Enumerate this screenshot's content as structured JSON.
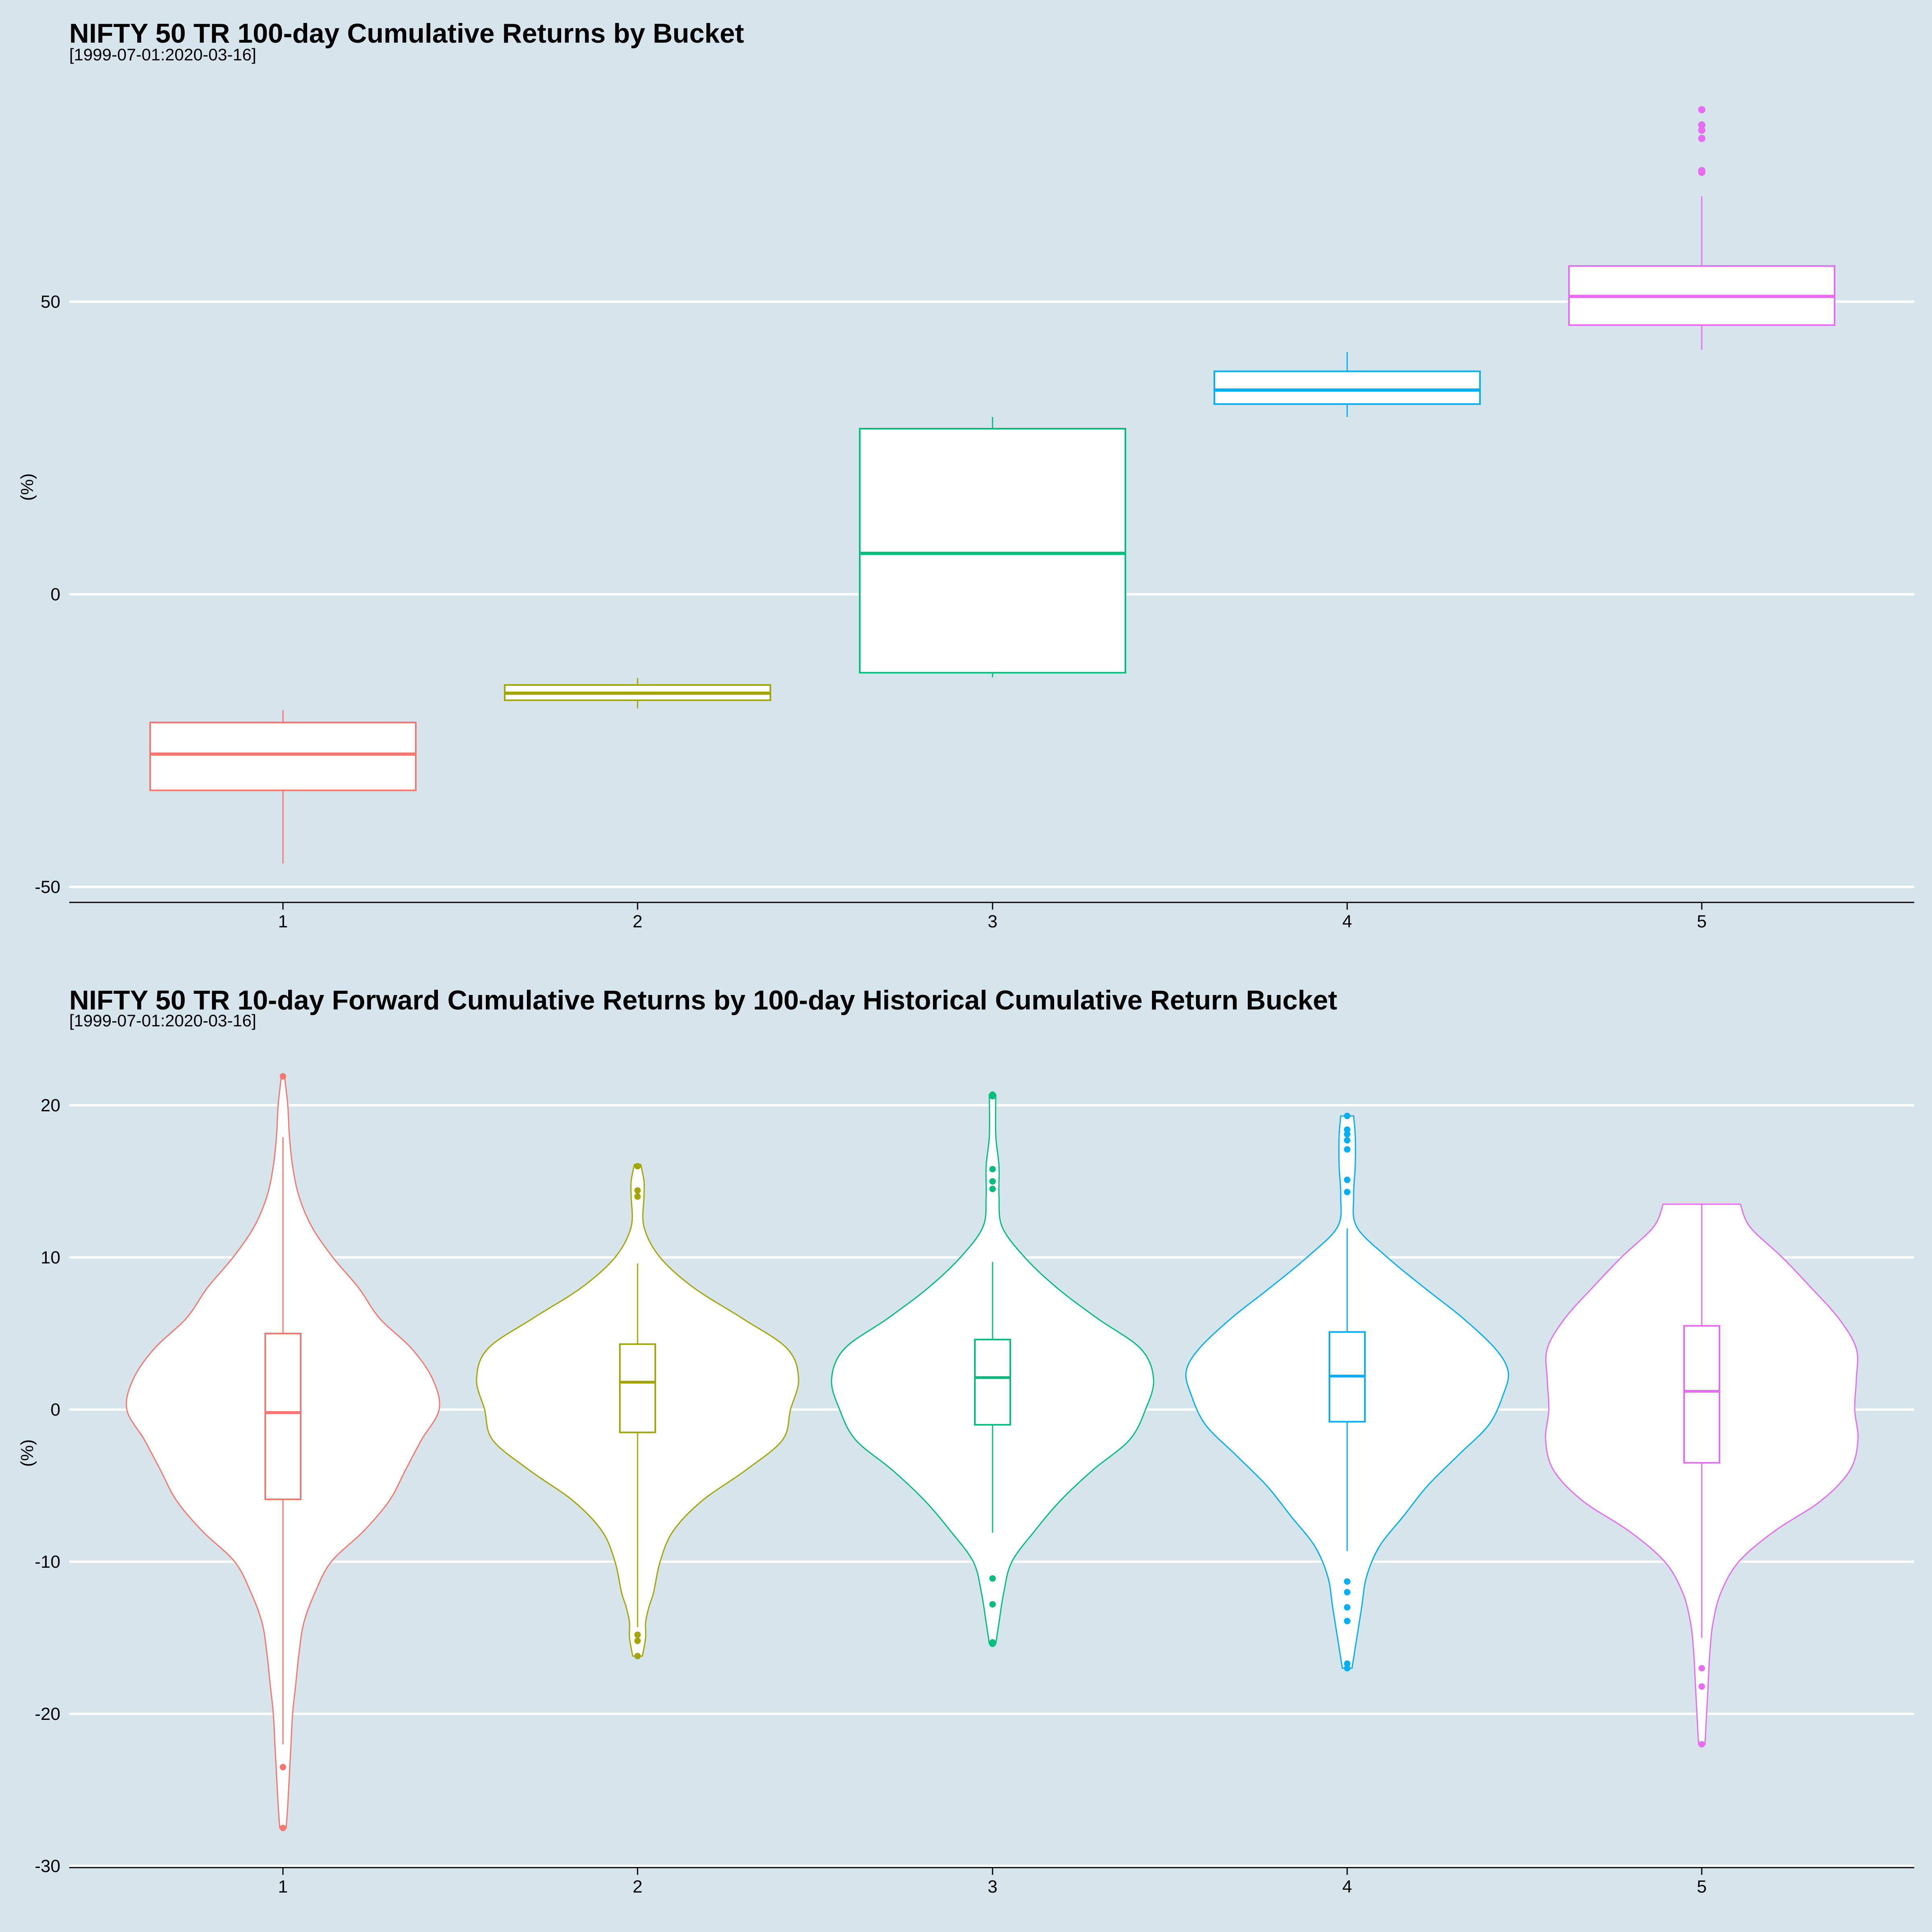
{
  "chart_data": [
    {
      "type": "box",
      "title": "NIFTY 50 TR 100-day Cumulative Returns by Bucket",
      "subtitle": "[1999-07-01:2020-03-16]",
      "ylabel": "(%)",
      "ylim": [
        -52,
        100
      ],
      "yticks": [
        -50,
        0,
        50
      ],
      "grid": true,
      "categories": [
        "1",
        "2",
        "3",
        "4",
        "5"
      ],
      "colors": [
        "#F8766D",
        "#A3A500",
        "#00BF7D",
        "#00B0F6",
        "#E76BF3"
      ],
      "boxes": [
        {
          "category": "1",
          "whisker_low": -46,
          "q1": -33.5,
          "median": -27.3,
          "q3": -21.9,
          "whisker_high": -19.8,
          "outliers": []
        },
        {
          "category": "2",
          "whisker_low": -19.5,
          "q1": -18.1,
          "median": -16.9,
          "q3": -15.5,
          "whisker_high": -14.3,
          "outliers": []
        },
        {
          "category": "3",
          "whisker_low": -14.2,
          "q1": -13.4,
          "median": 7.0,
          "q3": 28.3,
          "whisker_high": 30.3,
          "outliers": []
        },
        {
          "category": "4",
          "whisker_low": 30.3,
          "q1": 32.5,
          "median": 34.9,
          "q3": 38.1,
          "whisker_high": 41.4,
          "outliers": []
        },
        {
          "category": "5",
          "whisker_low": 41.8,
          "q1": 46.0,
          "median": 50.9,
          "q3": 56.1,
          "whisker_high": 68.0,
          "outliers": [
            72.1,
            72.4,
            77.9,
            79.3,
            80.2,
            82.8
          ]
        }
      ]
    },
    {
      "type": "violin",
      "title": "NIFTY 50 TR 10-day Forward Cumulative Returns by 100-day Historical Cumulative Return Bucket",
      "subtitle": "[1999-07-01:2020-03-16]",
      "ylabel": "(%)",
      "ylim": [
        -30,
        24
      ],
      "yticks": [
        -30,
        -20,
        -10,
        0,
        10,
        20
      ],
      "grid": true,
      "categories": [
        "1",
        "2",
        "3",
        "4",
        "5"
      ],
      "colors": [
        "#F8766D",
        "#A3A500",
        "#00BF7D",
        "#00B0F6",
        "#E76BF3"
      ],
      "violins": [
        {
          "category": "1",
          "range": [
            -27.5,
            21.9
          ],
          "density": [
            [
              -27.5,
              0.02
            ],
            [
              -26,
              0.03
            ],
            [
              -24,
              0.04
            ],
            [
              -22,
              0.05
            ],
            [
              -20,
              0.06
            ],
            [
              -18,
              0.08
            ],
            [
              -16,
              0.1
            ],
            [
              -14,
              0.13
            ],
            [
              -12,
              0.2
            ],
            [
              -10,
              0.3
            ],
            [
              -8,
              0.5
            ],
            [
              -6,
              0.66
            ],
            [
              -4,
              0.76
            ],
            [
              -2,
              0.86
            ],
            [
              0,
              0.97
            ],
            [
              2,
              0.93
            ],
            [
              4,
              0.8
            ],
            [
              6,
              0.6
            ],
            [
              8,
              0.47
            ],
            [
              10,
              0.31
            ],
            [
              12,
              0.18
            ],
            [
              14,
              0.1
            ],
            [
              16,
              0.06
            ],
            [
              18,
              0.04
            ],
            [
              20,
              0.03
            ],
            [
              21.9,
              0.01
            ]
          ],
          "box": {
            "whisker_low": -22.0,
            "q1": -5.9,
            "median": -0.2,
            "q3": 5.0,
            "whisker_high": 17.9
          },
          "outliers": [
            -27.5,
            -23.5,
            21.9
          ]
        },
        {
          "category": "2",
          "range": [
            -16.2,
            16.1
          ],
          "density": [
            [
              -16.2,
              0.03
            ],
            [
              -15,
              0.05
            ],
            [
              -14,
              0.05
            ],
            [
              -13,
              0.07
            ],
            [
              -12,
              0.1
            ],
            [
              -10,
              0.14
            ],
            [
              -8,
              0.22
            ],
            [
              -6,
              0.4
            ],
            [
              -4,
              0.67
            ],
            [
              -2,
              0.9
            ],
            [
              0,
              0.95
            ],
            [
              2,
              1.0
            ],
            [
              4,
              0.93
            ],
            [
              6,
              0.65
            ],
            [
              8,
              0.35
            ],
            [
              10,
              0.14
            ],
            [
              12,
              0.04
            ],
            [
              14,
              0.04
            ],
            [
              15,
              0.04
            ],
            [
              16.1,
              0.02
            ]
          ],
          "box": {
            "whisker_low": -14.3,
            "q1": -1.5,
            "median": 1.8,
            "q3": 4.3,
            "whisker_high": 9.6
          },
          "outliers": [
            -16.2,
            -15.2,
            -14.8,
            14.0,
            14.4,
            16.0
          ]
        },
        {
          "category": "3",
          "range": [
            -15.4,
            20.7
          ],
          "density": [
            [
              -15.4,
              0.02
            ],
            [
              -14,
              0.04
            ],
            [
              -12,
              0.07
            ],
            [
              -10,
              0.12
            ],
            [
              -8,
              0.26
            ],
            [
              -6,
              0.42
            ],
            [
              -4,
              0.62
            ],
            [
              -2,
              0.85
            ],
            [
              0,
              0.95
            ],
            [
              2,
              1.0
            ],
            [
              4,
              0.92
            ],
            [
              6,
              0.65
            ],
            [
              8,
              0.4
            ],
            [
              10,
              0.2
            ],
            [
              12,
              0.06
            ],
            [
              14,
              0.04
            ],
            [
              16,
              0.04
            ],
            [
              18,
              0.02
            ],
            [
              20.7,
              0.02
            ]
          ],
          "box": {
            "whisker_low": -8.1,
            "q1": -1.0,
            "median": 2.1,
            "q3": 4.6,
            "whisker_high": 9.7
          },
          "outliers": [
            -15.4,
            -15.3,
            -12.8,
            -11.1,
            14.5,
            15.0,
            15.8,
            20.6,
            20.7
          ]
        },
        {
          "category": "4",
          "range": [
            -17.0,
            19.3
          ],
          "density": [
            [
              -17,
              0.03
            ],
            [
              -15,
              0.06
            ],
            [
              -13,
              0.09
            ],
            [
              -11,
              0.12
            ],
            [
              -9,
              0.2
            ],
            [
              -7,
              0.35
            ],
            [
              -5,
              0.5
            ],
            [
              -3,
              0.69
            ],
            [
              -1,
              0.88
            ],
            [
              1,
              0.97
            ],
            [
              2.5,
              1.0
            ],
            [
              4,
              0.92
            ],
            [
              6,
              0.72
            ],
            [
              8,
              0.48
            ],
            [
              10,
              0.25
            ],
            [
              12,
              0.06
            ],
            [
              14,
              0.04
            ],
            [
              16,
              0.05
            ],
            [
              18,
              0.05
            ],
            [
              19.3,
              0.04
            ]
          ],
          "box": {
            "whisker_low": -9.3,
            "q1": -0.8,
            "median": 2.2,
            "q3": 5.1,
            "whisker_high": 11.9
          },
          "outliers": [
            -17.0,
            -16.7,
            -13.9,
            -13.0,
            -12.0,
            -11.3,
            14.3,
            15.1,
            17.1,
            17.7,
            18.1,
            18.4,
            19.3
          ]
        },
        {
          "category": "5",
          "range": [
            -22.0,
            13.5
          ],
          "density": [
            [
              -22,
              0.02
            ],
            [
              -20,
              0.03
            ],
            [
              -18,
              0.04
            ],
            [
              -16,
              0.05
            ],
            [
              -14,
              0.07
            ],
            [
              -12,
              0.12
            ],
            [
              -10,
              0.23
            ],
            [
              -8,
              0.45
            ],
            [
              -6,
              0.74
            ],
            [
              -4,
              0.92
            ],
            [
              -2,
              0.97
            ],
            [
              0,
              0.95
            ],
            [
              2,
              0.96
            ],
            [
              4,
              0.96
            ],
            [
              6,
              0.85
            ],
            [
              8,
              0.68
            ],
            [
              10,
              0.5
            ],
            [
              12,
              0.3
            ],
            [
              13.5,
              0.24
            ]
          ],
          "box": {
            "whisker_low": -15.0,
            "q1": -3.5,
            "median": 1.2,
            "q3": 5.5,
            "whisker_high": 13.5
          },
          "outliers": [
            -22.0,
            -18.2,
            -17.0
          ]
        }
      ]
    }
  ]
}
